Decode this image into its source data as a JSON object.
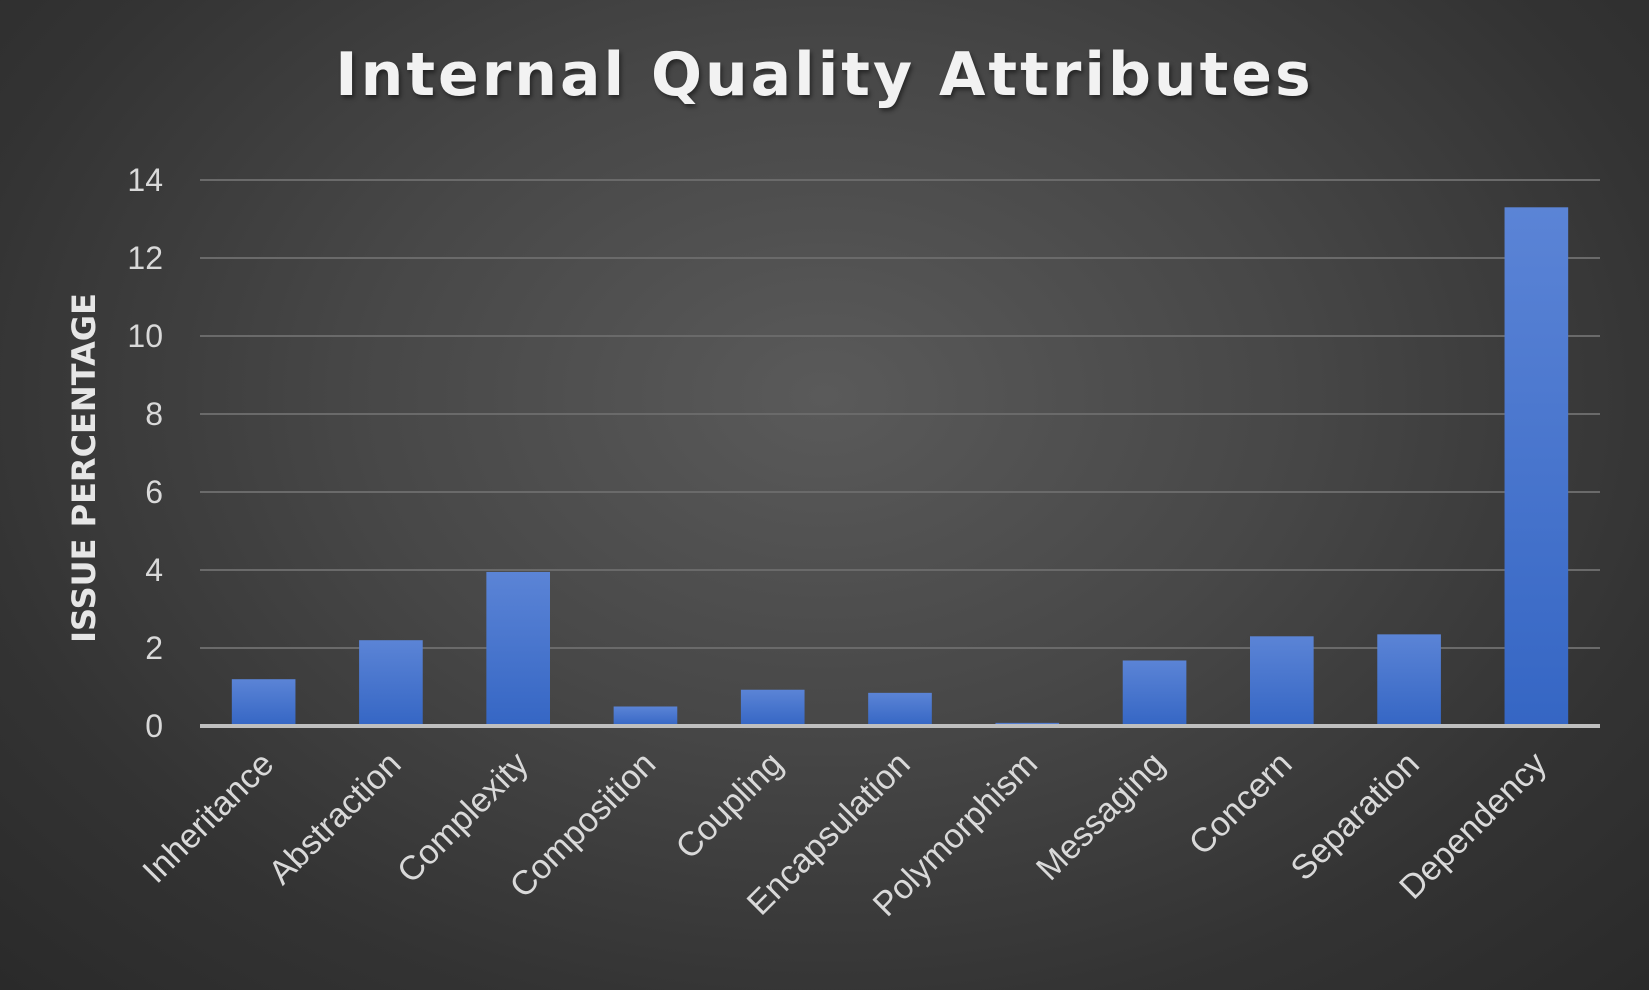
{
  "chart_data": {
    "type": "bar",
    "title": "Internal Quality Attributes",
    "xlabel": "",
    "ylabel": "ISSUE PERCENTAGE",
    "ylim": [
      0,
      14
    ],
    "yticks": [
      0,
      2,
      4,
      6,
      8,
      10,
      12,
      14
    ],
    "grid": true,
    "legend": "none",
    "categories": [
      "Inheritance",
      "Abstraction",
      "Complexity",
      "Composition",
      "Coupling",
      "Encapsulation",
      "Polymorphism",
      "Messaging",
      "Concern",
      "Separation",
      "Dependency"
    ],
    "values": [
      1.2,
      2.2,
      3.95,
      0.5,
      0.93,
      0.85,
      0.08,
      1.68,
      2.3,
      2.35,
      13.3
    ],
    "colors": {
      "bar_top": "#5b84d6",
      "bar_bottom": "#3566c4",
      "gridline": "#6a6a6a",
      "axis": "#bfbfbf"
    }
  }
}
